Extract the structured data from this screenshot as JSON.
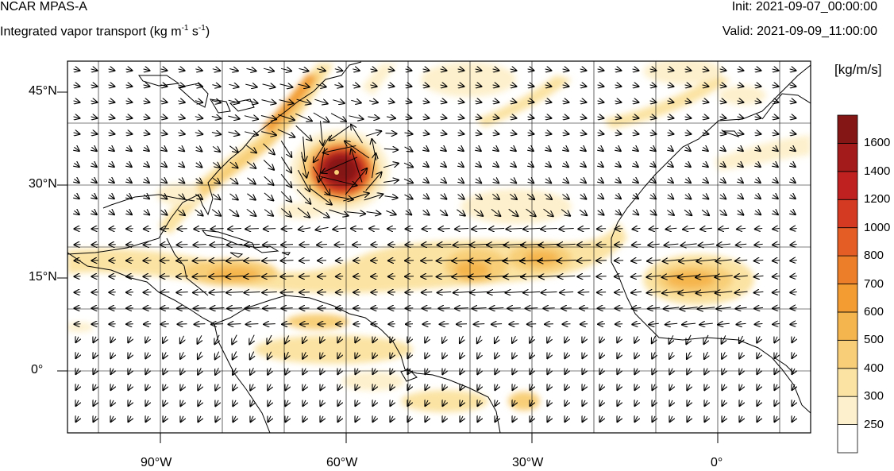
{
  "header": {
    "model": "NCAR MPAS-A",
    "field_prefix": "Integrated vapor transport (kg m",
    "field_exp1": "-1",
    "field_mid": " s",
    "field_exp2": "-1",
    "field_suffix": ")",
    "init": "Init: 2021-09-07_00:00:00",
    "valid": "Valid: 2021-09-09_11:00:00"
  },
  "map": {
    "lon_range": [
      -105,
      15
    ],
    "lat_range": [
      -10,
      50
    ],
    "lat_ticks": [
      "45°N",
      "30°N",
      "15°N",
      "0°"
    ],
    "lon_ticks": [
      "90°W",
      "60°W",
      "30°W",
      "0°"
    ],
    "colors": {
      "frame": "#000000",
      "coast": "#000000",
      "grid": "#000000"
    }
  },
  "colorbar": {
    "units": "[kg/m/s]",
    "levels": [
      "250",
      "300",
      "400",
      "500",
      "600",
      "700",
      "800",
      "1000",
      "1200",
      "1400",
      "1600"
    ],
    "colors": [
      "#ffffff",
      "#fdf0cc",
      "#fbe3a3",
      "#f8cf78",
      "#f5b54e",
      "#f29c31",
      "#ec7e2a",
      "#e45d25",
      "#d43a22",
      "#bf2020",
      "#a31b1b",
      "#851616"
    ]
  }
}
